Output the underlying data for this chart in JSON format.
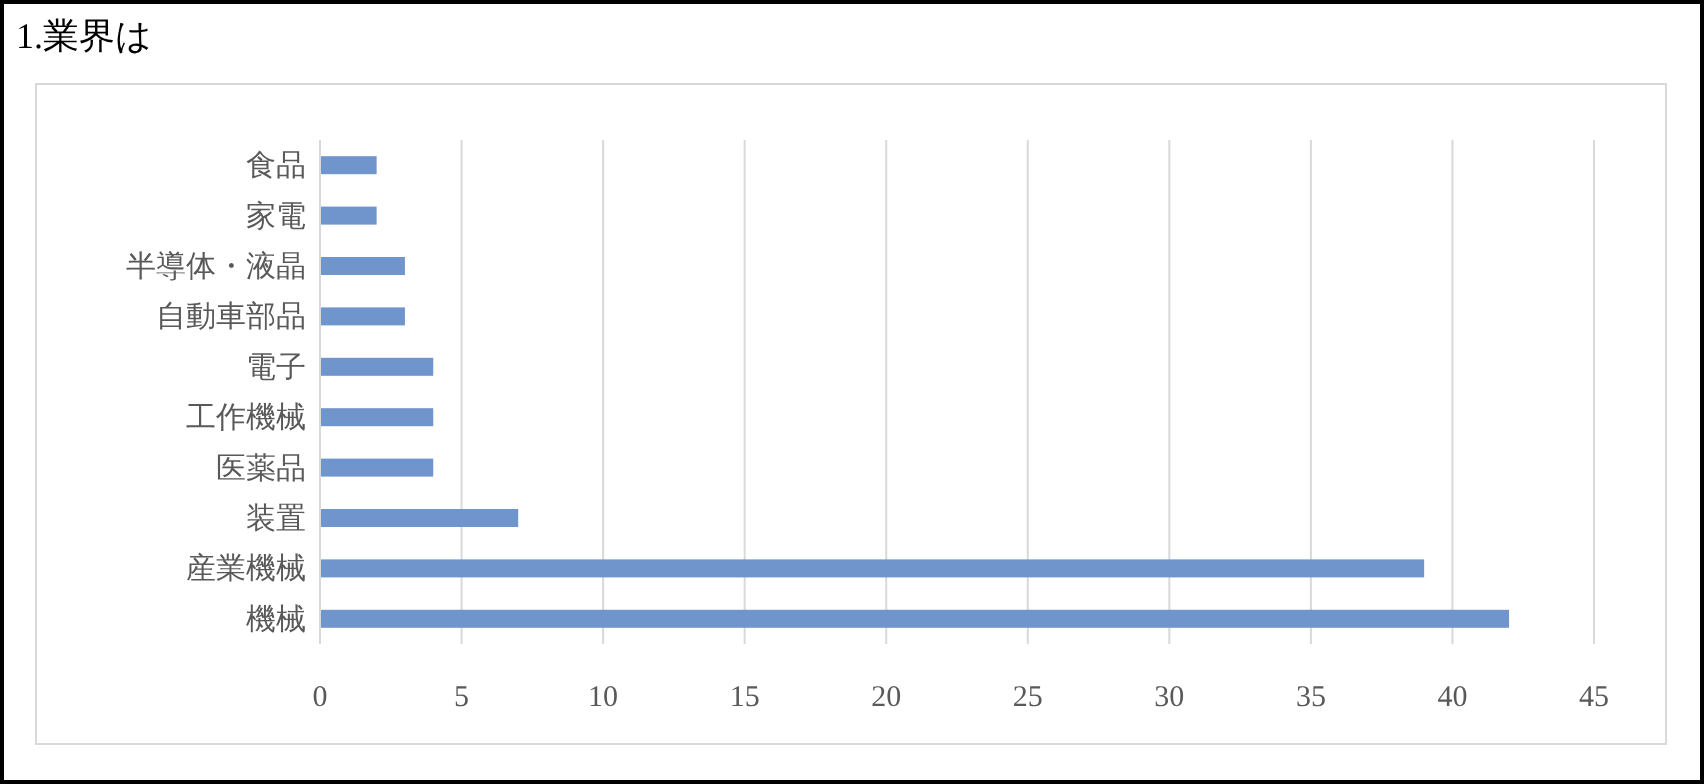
{
  "chart_data": {
    "type": "bar",
    "orientation": "horizontal",
    "title": "1.業界は",
    "categories": [
      "食品",
      "家電",
      "半導体・液晶",
      "自動車部品",
      "電子",
      "工作機械",
      "医薬品",
      "装置",
      "産業機械",
      "機械"
    ],
    "values": [
      2,
      2,
      3,
      3,
      4,
      4,
      4,
      7,
      39,
      42
    ],
    "color": "#7094cc",
    "xlim": [
      0,
      45
    ],
    "xticks": [
      0,
      5,
      10,
      15,
      20,
      25,
      30,
      35,
      40,
      45
    ],
    "grid": "x"
  }
}
